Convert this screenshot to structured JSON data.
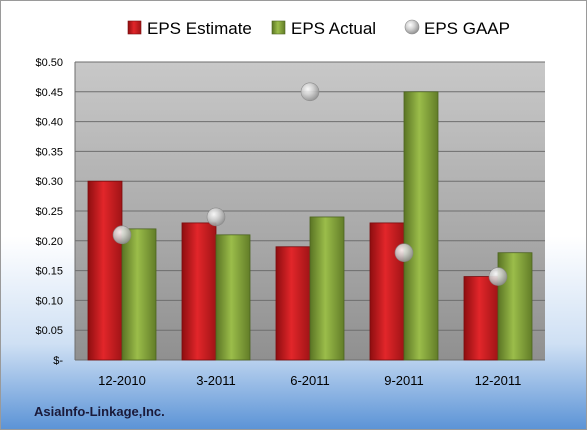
{
  "chart_data": {
    "type": "bar",
    "categories": [
      "12-2010",
      "3-2011",
      "6-2011",
      "9-2011",
      "12-2011"
    ],
    "series": [
      {
        "name": "EPS Estimate",
        "type": "bar",
        "values": [
          0.3,
          0.23,
          0.19,
          0.23,
          0.14
        ],
        "color": "#c0181c"
      },
      {
        "name": "EPS Actual",
        "type": "bar",
        "values": [
          0.22,
          0.21,
          0.24,
          0.45,
          0.18
        ],
        "color": "#7a9a32"
      },
      {
        "name": "EPS GAAP",
        "type": "scatter",
        "values": [
          0.21,
          0.24,
          0.45,
          0.18,
          0.14
        ],
        "color": "#b0b0b0"
      }
    ],
    "ylim": [
      0,
      0.5
    ],
    "yticks": [
      0,
      0.05,
      0.1,
      0.15,
      0.2,
      0.25,
      0.3,
      0.35,
      0.4,
      0.45,
      0.5
    ],
    "ytick_labels": [
      "$-",
      "$0.05",
      "$0.10",
      "$0.15",
      "$0.20",
      "$0.25",
      "$0.30",
      "$0.35",
      "$0.40",
      "$0.45",
      "$0.50"
    ],
    "grid": true,
    "legend_position": "top",
    "footer": "AsiaInfo-Linkage,Inc."
  }
}
